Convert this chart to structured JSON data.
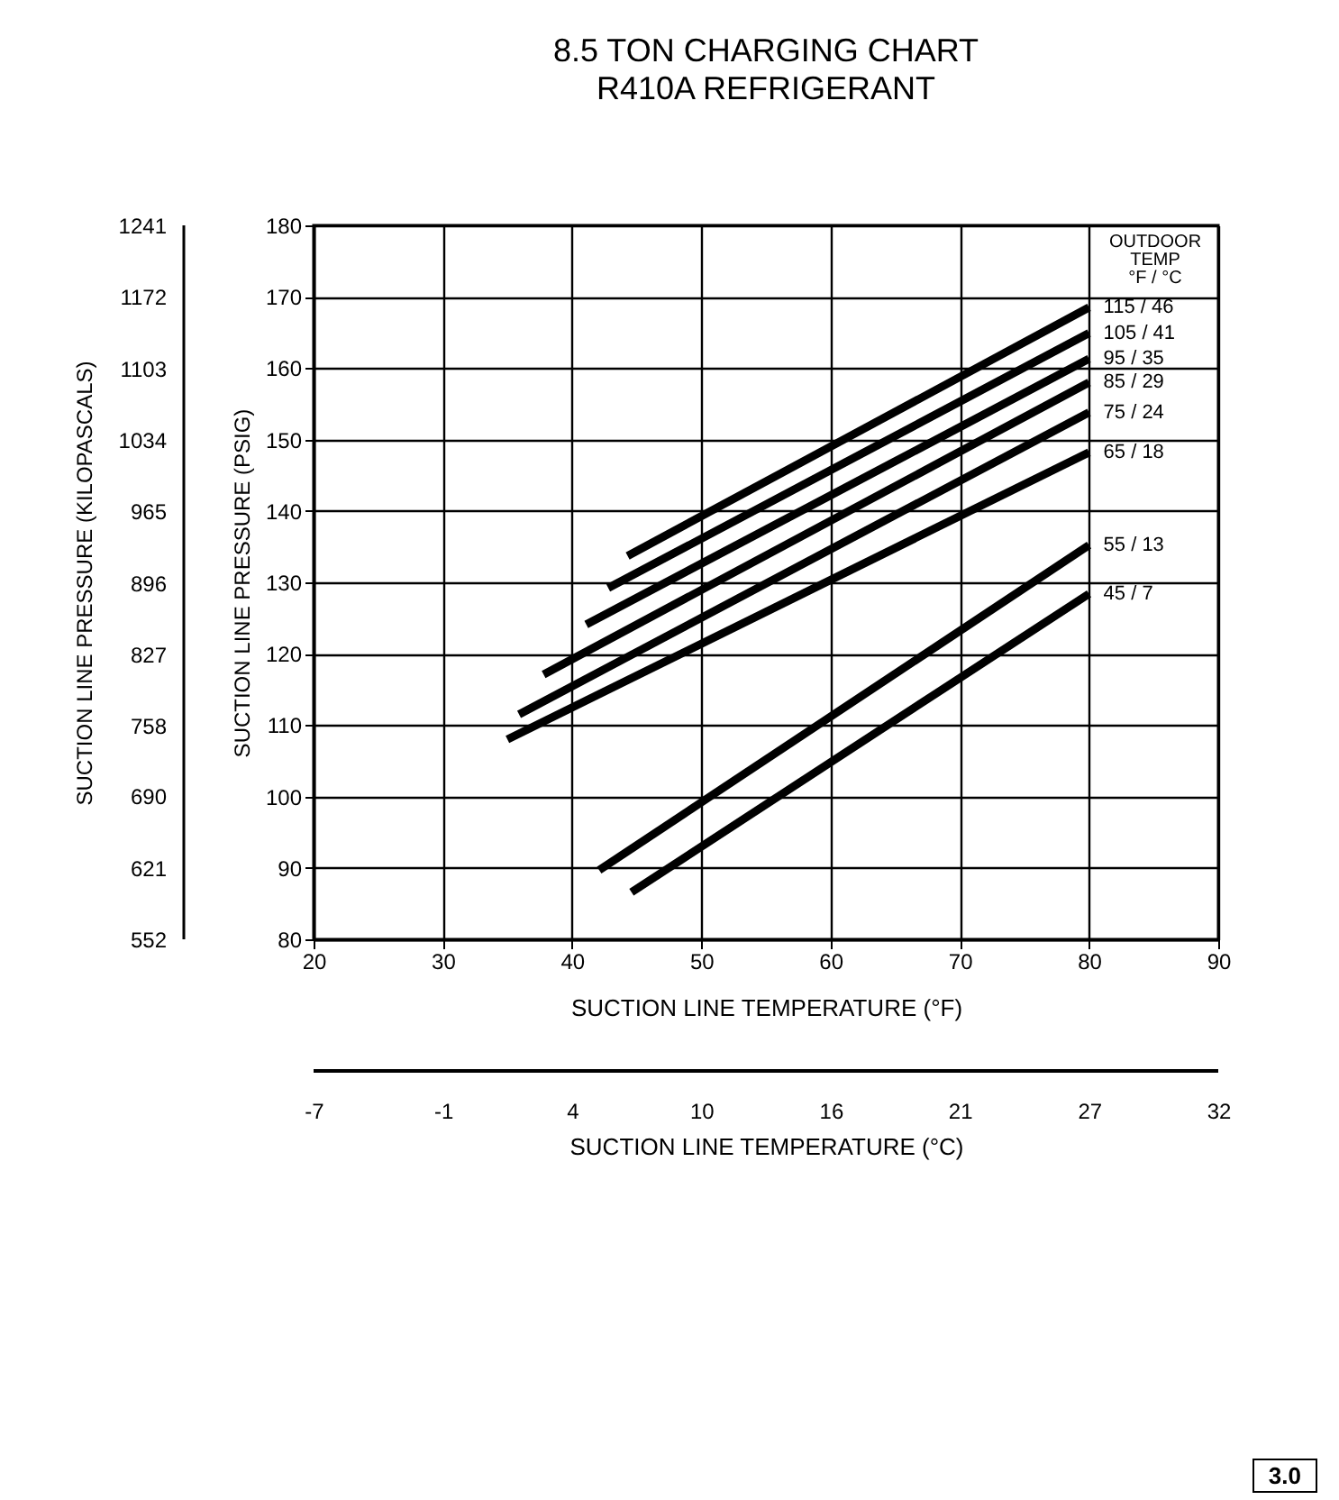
{
  "chart_data": {
    "type": "line",
    "title": "8.5 TON CHARGING CHART",
    "subtitle": "R410A REFRIGERANT",
    "xlabel": "SUCTION LINE TEMPERATURE (°F)",
    "ylabel": "SUCTION LINE PRESSURE (PSIG)",
    "y2label": "SUCTION LINE PRESSURE (KILOPASCALS)",
    "x2label": "SUCTION LINE TEMPERATURE (°C)",
    "legend_title": "OUTDOOR\nTEMP\n°F / °C",
    "xlim": [
      20,
      90
    ],
    "xticks": [
      20,
      30,
      40,
      50,
      60,
      70,
      80,
      90
    ],
    "ylim": [
      80,
      180
    ],
    "yticks": [
      80,
      90,
      100,
      110,
      120,
      130,
      140,
      150,
      160,
      170,
      180
    ],
    "y2lim": [
      552,
      1241
    ],
    "y2ticks": [
      552,
      621,
      690,
      758,
      827,
      896,
      965,
      1034,
      1103,
      1172,
      1241
    ],
    "x2lim": [
      -6.67,
      32.22
    ],
    "x2ticks": [
      {
        "value": -6.67,
        "label": "-7"
      },
      {
        "value": -1.11,
        "label": "-1"
      },
      {
        "value": 4.44,
        "label": "4"
      },
      10,
      {
        "value": 15.56,
        "label": "16"
      },
      {
        "value": 21.11,
        "label": "21"
      },
      {
        "value": 26.67,
        "label": "27"
      },
      {
        "value": 32.22,
        "label": "32"
      }
    ],
    "grid": true,
    "series": [
      {
        "name": "115 / 46",
        "color": "#000000",
        "x": [
          44.3,
          80
        ],
        "values": [
          133.7,
          168.5
        ]
      },
      {
        "name": "105 / 41",
        "color": "#000000",
        "x": [
          42.8,
          80
        ],
        "values": [
          129.2,
          164.9
        ]
      },
      {
        "name": "95 / 35",
        "color": "#000000",
        "x": [
          41.1,
          80
        ],
        "values": [
          124.1,
          161.3
        ]
      },
      {
        "name": "85 / 29",
        "color": "#000000",
        "x": [
          37.8,
          80
        ],
        "values": [
          117.1,
          158.0
        ]
      },
      {
        "name": "75 / 24",
        "color": "#000000",
        "x": [
          35.9,
          80
        ],
        "values": [
          111.5,
          153.8
        ]
      },
      {
        "name": "65 / 18",
        "color": "#000000",
        "x": [
          35.0,
          80
        ],
        "values": [
          108.0,
          148.2
        ]
      },
      {
        "name": "55 / 13",
        "color": "#000000",
        "x": [
          42.1,
          80
        ],
        "values": [
          89.7,
          135.2
        ]
      },
      {
        "name": "45 / 7",
        "color": "#000000",
        "x": [
          44.6,
          80
        ],
        "values": [
          86.6,
          128.4
        ]
      }
    ],
    "annotations": [
      "3.0"
    ]
  }
}
